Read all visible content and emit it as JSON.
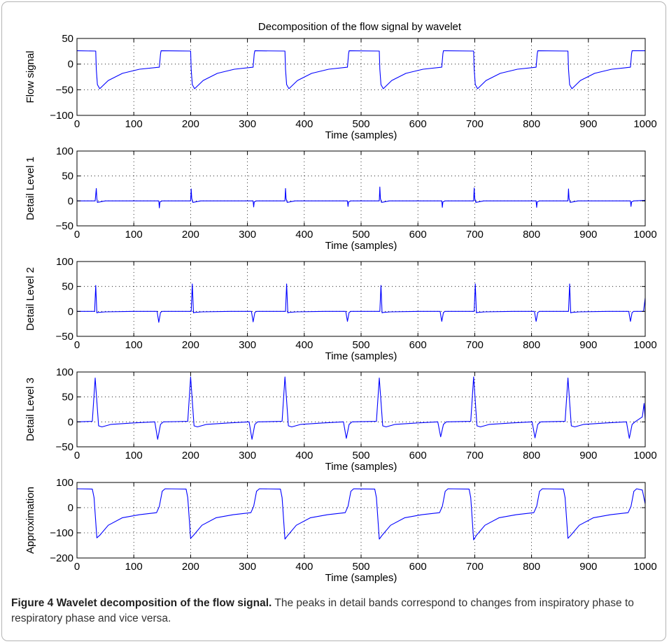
{
  "figure_title": "Decomposition of the flow signal by wavelet",
  "caption": {
    "label": "Figure 4 Wavelet decomposition of the flow signal.",
    "text": " The peaks in detail bands correspond to changes from inspiratory phase to respiratory phase and vice versa."
  },
  "colors": {
    "line": "#0000ff",
    "axis": "#000000",
    "grid": "#000000"
  },
  "chart_data": [
    {
      "type": "line",
      "title": "Decomposition of the flow signal by wavelet",
      "ylabel": "Flow signal",
      "xlabel": "Time (samples)",
      "xlim": [
        0,
        1000
      ],
      "ylim": [
        -100,
        50
      ],
      "xticks": [
        0,
        100,
        200,
        300,
        400,
        500,
        600,
        700,
        800,
        900,
        1000
      ],
      "yticks": [
        -100,
        -50,
        0,
        50
      ],
      "grid": true,
      "series": [
        {
          "x": [
            0,
            33,
            34,
            36,
            40,
            55,
            80,
            110,
            145,
            147,
            148,
            200,
            201,
            203,
            207,
            222,
            247,
            277,
            310,
            312,
            313,
            366,
            367,
            369,
            373,
            388,
            413,
            443,
            476,
            478,
            479,
            532,
            533,
            535,
            539,
            554,
            579,
            609,
            642,
            644,
            645,
            698,
            699,
            701,
            705,
            720,
            745,
            775,
            808,
            810,
            811,
            864,
            865,
            867,
            871,
            886,
            911,
            941,
            974,
            976,
            977,
            1000
          ],
          "y": [
            26,
            25.5,
            -10,
            -40,
            -48,
            -32,
            -18,
            -10,
            -6,
            20,
            26,
            25.5,
            -10,
            -40,
            -48,
            -32,
            -18,
            -10,
            -6,
            20,
            26,
            25.5,
            -10,
            -40,
            -48,
            -32,
            -18,
            -10,
            -6,
            20,
            26,
            25.5,
            -10,
            -40,
            -48,
            -32,
            -18,
            -10,
            -6,
            20,
            26,
            25.5,
            -10,
            -40,
            -48,
            -32,
            -18,
            -10,
            -6,
            20,
            26,
            25.5,
            -10,
            -40,
            -48,
            -32,
            -18,
            -10,
            -6,
            20,
            26,
            26
          ]
        }
      ]
    },
    {
      "type": "line",
      "ylabel": "Detail Level 1",
      "xlabel": "Time (samples)",
      "xlim": [
        0,
        1000
      ],
      "ylim": [
        -50,
        100
      ],
      "xticks": [
        0,
        100,
        200,
        300,
        400,
        500,
        600,
        700,
        800,
        900,
        1000
      ],
      "yticks": [
        -50,
        0,
        50,
        100
      ],
      "grid": true,
      "series": [
        {
          "x": [
            0,
            32,
            34,
            35,
            36,
            40,
            50,
            100,
            144,
            145,
            146,
            150,
            200,
            201,
            202,
            204,
            208,
            218,
            268,
            310,
            311,
            312,
            316,
            366,
            367,
            368,
            370,
            374,
            384,
            434,
            476,
            477,
            478,
            482,
            532,
            533,
            534,
            536,
            540,
            550,
            600,
            642,
            643,
            644,
            648,
            698,
            699,
            700,
            702,
            706,
            716,
            766,
            808,
            809,
            810,
            814,
            864,
            865,
            866,
            868,
            872,
            882,
            932,
            974,
            975,
            976,
            980,
            1000
          ],
          "y": [
            0,
            0,
            25,
            5,
            -3,
            -2,
            0,
            0,
            0,
            -14,
            -2,
            0,
            0,
            24,
            5,
            -3,
            -2,
            0,
            0,
            0,
            -12,
            -2,
            0,
            0,
            25,
            5,
            -3,
            -2,
            0,
            0,
            0,
            -11,
            -2,
            0,
            0,
            28,
            5,
            -3,
            -2,
            0,
            0,
            0,
            -13,
            -2,
            0,
            0,
            26,
            5,
            -3,
            -2,
            0,
            0,
            0,
            -13,
            -2,
            0,
            0,
            24,
            5,
            -3,
            -2,
            0,
            0,
            0,
            -11,
            -2,
            0,
            1
          ]
        }
      ]
    },
    {
      "type": "line",
      "ylabel": "Detail Level 2",
      "xlabel": "Time (samples)",
      "xlim": [
        0,
        1000
      ],
      "ylim": [
        -50,
        100
      ],
      "xticks": [
        0,
        100,
        200,
        300,
        400,
        500,
        600,
        700,
        800,
        900,
        1000
      ],
      "yticks": [
        -50,
        0,
        50,
        100
      ],
      "grid": true,
      "series": [
        {
          "x": [
            0,
            31,
            33,
            35,
            37,
            50,
            100,
            141,
            144,
            147,
            150,
            200,
            201,
            203,
            205,
            207,
            220,
            270,
            307,
            310,
            313,
            316,
            366,
            367,
            369,
            371,
            373,
            386,
            436,
            473,
            476,
            479,
            482,
            532,
            533,
            535,
            537,
            539,
            552,
            602,
            639,
            642,
            645,
            648,
            698,
            699,
            701,
            703,
            705,
            718,
            768,
            805,
            808,
            811,
            814,
            864,
            865,
            867,
            869,
            871,
            884,
            934,
            971,
            974,
            977,
            980,
            997,
            1000
          ],
          "y": [
            0,
            0,
            52,
            -3,
            -2,
            -1,
            0,
            0,
            -22,
            -2,
            0,
            0,
            0,
            55,
            -3,
            -2,
            -1,
            0,
            0,
            -21,
            -2,
            0,
            0,
            0,
            55,
            -3,
            -2,
            -1,
            0,
            0,
            -20,
            -2,
            0,
            0,
            0,
            52,
            -3,
            -2,
            -1,
            0,
            0,
            -20,
            -2,
            0,
            0,
            0,
            55,
            -3,
            -2,
            -1,
            0,
            0,
            -20,
            -2,
            0,
            0,
            0,
            55,
            -3,
            -2,
            -1,
            0,
            0,
            -20,
            -2,
            0,
            0,
            27
          ]
        }
      ]
    },
    {
      "type": "line",
      "ylabel": "Detail Level 3",
      "xlabel": "Time (samples)",
      "xlim": [
        0,
        1000
      ],
      "ylim": [
        -50,
        100
      ],
      "xticks": [
        0,
        100,
        200,
        300,
        400,
        500,
        600,
        700,
        800,
        900,
        1000
      ],
      "yticks": [
        -50,
        0,
        50,
        100
      ],
      "grid": true,
      "series": [
        {
          "x": [
            0,
            27,
            32,
            38,
            44,
            60,
            100,
            137,
            142,
            147,
            152,
            195,
            200,
            206,
            212,
            228,
            268,
            303,
            308,
            313,
            318,
            361,
            366,
            372,
            378,
            394,
            434,
            469,
            474,
            479,
            484,
            527,
            532,
            538,
            544,
            560,
            600,
            635,
            640,
            645,
            650,
            693,
            698,
            704,
            710,
            726,
            766,
            801,
            806,
            811,
            816,
            859,
            864,
            870,
            876,
            892,
            932,
            967,
            972,
            977,
            982,
            995,
            998,
            1000
          ],
          "y": [
            0,
            1,
            88,
            -8,
            -10,
            -5,
            -2,
            0,
            -35,
            -5,
            0,
            1,
            90,
            -8,
            -10,
            -5,
            -2,
            0,
            -35,
            -5,
            0,
            1,
            90,
            -8,
            -10,
            -5,
            -2,
            0,
            -33,
            -5,
            0,
            1,
            88,
            -8,
            -10,
            -5,
            -2,
            0,
            -30,
            -5,
            0,
            1,
            90,
            -8,
            -10,
            -5,
            -2,
            0,
            -32,
            -5,
            0,
            1,
            88,
            -8,
            -10,
            -5,
            -2,
            0,
            -33,
            -5,
            0,
            10,
            37,
            5
          ]
        }
      ]
    },
    {
      "type": "line",
      "ylabel": "Approximation",
      "xlabel": "Time (samples)",
      "xlim": [
        0,
        1000
      ],
      "ylim": [
        -200,
        100
      ],
      "xticks": [
        0,
        100,
        200,
        300,
        400,
        500,
        600,
        700,
        800,
        900,
        1000
      ],
      "yticks": [
        -200,
        -100,
        0,
        100
      ],
      "grid": true,
      "series": [
        {
          "x": [
            0,
            27,
            30,
            35,
            40,
            55,
            80,
            110,
            140,
            145,
            150,
            155,
            192,
            195,
            200,
            205,
            220,
            245,
            275,
            306,
            311,
            316,
            321,
            358,
            361,
            366,
            371,
            386,
            411,
            441,
            472,
            477,
            482,
            487,
            524,
            527,
            532,
            537,
            552,
            577,
            607,
            638,
            643,
            648,
            653,
            690,
            693,
            698,
            703,
            718,
            743,
            773,
            804,
            809,
            814,
            819,
            856,
            859,
            864,
            869,
            884,
            909,
            939,
            970,
            975,
            980,
            985,
            995,
            1000
          ],
          "y": [
            75,
            74,
            40,
            -120,
            -110,
            -70,
            -40,
            -28,
            -20,
            5,
            65,
            75,
            74,
            40,
            -122,
            -110,
            -70,
            -40,
            -28,
            -20,
            5,
            65,
            75,
            74,
            40,
            -125,
            -110,
            -70,
            -40,
            -28,
            -20,
            5,
            65,
            75,
            74,
            40,
            -125,
            -110,
            -70,
            -40,
            -28,
            -20,
            5,
            65,
            75,
            74,
            40,
            -128,
            -110,
            -70,
            -40,
            -28,
            -20,
            5,
            65,
            75,
            74,
            40,
            -122,
            -110,
            -70,
            -40,
            -28,
            -20,
            5,
            65,
            75,
            70,
            15
          ]
        }
      ]
    }
  ]
}
